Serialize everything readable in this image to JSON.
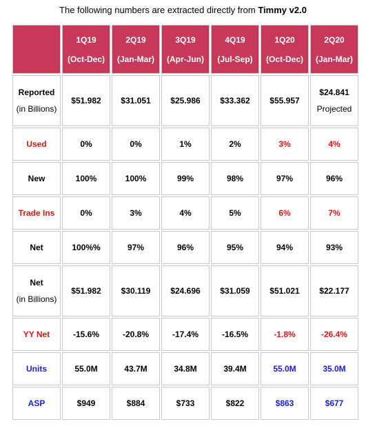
{
  "caption": {
    "prefix": "The following numbers are extracted directly from ",
    "source": "Timmy v2.0"
  },
  "colors": {
    "header_bg": "#c8385a",
    "header_text": "#ffffff",
    "red": "#ee1111",
    "blue": "#1a1adf"
  },
  "headers": [
    {
      "q": "1Q19",
      "range": "(Oct-Dec)"
    },
    {
      "q": "2Q19",
      "range": "(Jan-Mar)"
    },
    {
      "q": "3Q19",
      "range": "(Apr-Jun)"
    },
    {
      "q": "4Q19",
      "range": "(Jul-Sep)"
    },
    {
      "q": "1Q20",
      "range": "(Oct-Dec)"
    },
    {
      "q": "2Q20",
      "range": "(Jan-Mar)"
    }
  ],
  "rows": {
    "reported": {
      "label": "Reported",
      "sublabel": "(in Billions)",
      "values": [
        "$51.982",
        "$31.051",
        "$25.986",
        "$33.362",
        "$55.957",
        "$24.841"
      ],
      "note": "Projected"
    },
    "used": {
      "label": "Used",
      "values": [
        "0%",
        "0%",
        "1%",
        "2%",
        "3%",
        "4%"
      ]
    },
    "new": {
      "label": "New",
      "values": [
        "100%",
        "100%",
        "99%",
        "98%",
        "97%",
        "96%"
      ]
    },
    "trade_ins": {
      "label": "Trade Ins",
      "values": [
        "0%",
        "3%",
        "4%",
        "5%",
        "6%",
        "7%"
      ]
    },
    "net": {
      "label": "Net",
      "values": [
        "100%%",
        "97%",
        "96%",
        "95%",
        "94%",
        "93%"
      ]
    },
    "net_billions": {
      "label": "Net",
      "sublabel": "(in Billions)",
      "values": [
        "$51.982",
        "$30.119",
        "$24.696",
        "$31.059",
        "$51.021",
        "$22.177"
      ]
    },
    "yy_net": {
      "label": "YY Net",
      "values": [
        "-15.6%",
        "-20.8%",
        "-17.4%",
        "-16.5%",
        "-1.8%",
        "-26.4%"
      ]
    },
    "units": {
      "label": "Units",
      "values": [
        "55.0M",
        "43.7M",
        "34.8M",
        "39.4M",
        "55.0M",
        "35.0M"
      ]
    },
    "asp": {
      "label": "ASP",
      "values": [
        "$949",
        "$884",
        "$733",
        "$822",
        "$863",
        "$677"
      ]
    }
  }
}
